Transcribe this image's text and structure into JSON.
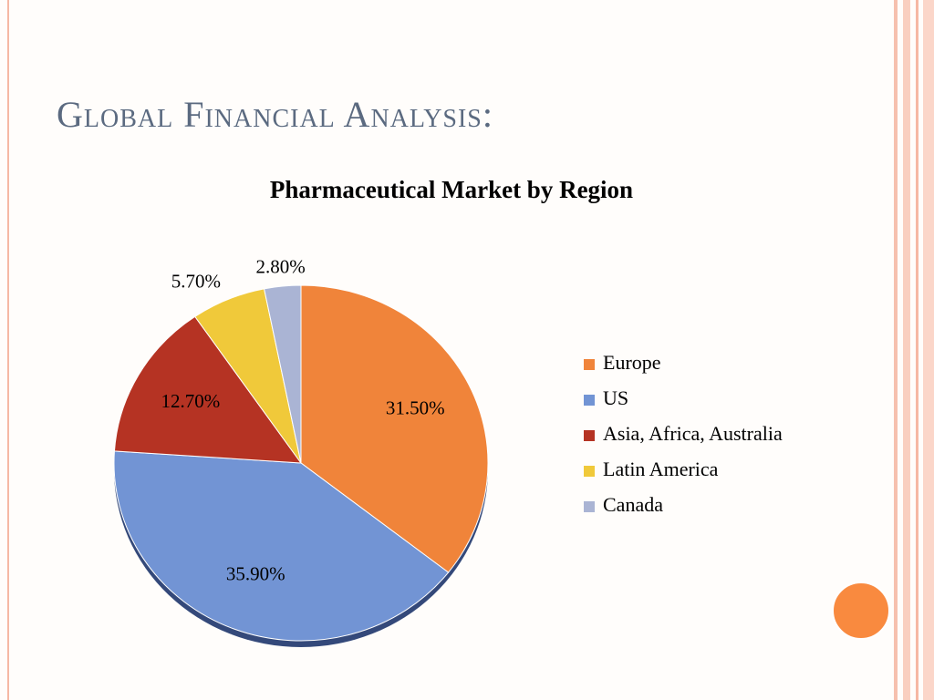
{
  "slide": {
    "title": "Global Financial Analysis:"
  },
  "chart_data": {
    "type": "pie",
    "title": "Pharmaceutical Market by Region",
    "categories": [
      "Europe",
      "US",
      "Asia, Africa, Australia",
      "Latin America",
      "Canada"
    ],
    "values": [
      31.5,
      35.9,
      12.7,
      5.7,
      2.8
    ],
    "value_labels": [
      "31.50%",
      "35.90%",
      "12.70%",
      "5.70%",
      "2.80%"
    ],
    "colors": [
      "#f0843a",
      "#7294d4",
      "#b53323",
      "#f0c93a",
      "#aab4d4"
    ],
    "legend": "right"
  }
}
